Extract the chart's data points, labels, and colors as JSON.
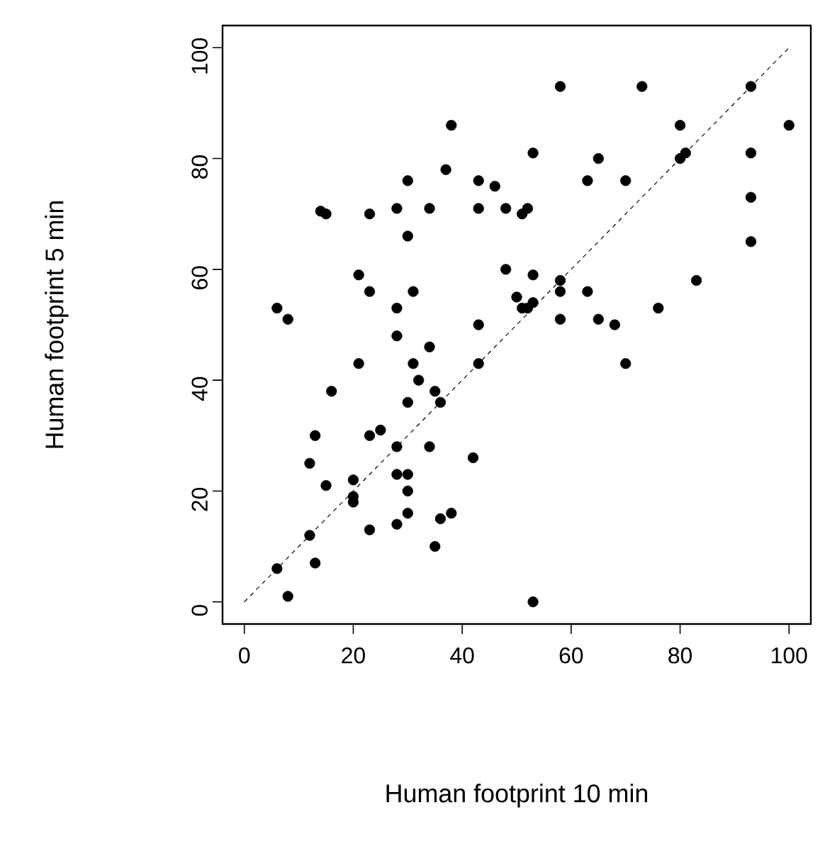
{
  "chart_data": {
    "type": "scatter",
    "xlabel": "Human footprint 10 min",
    "ylabel": "Human footprint 5 min",
    "xlim": [
      -4,
      104
    ],
    "ylim": [
      -4,
      104
    ],
    "xticks": [
      0,
      20,
      40,
      60,
      80,
      100
    ],
    "yticks": [
      0,
      20,
      40,
      60,
      80,
      100
    ],
    "grid": false,
    "series": [
      {
        "color": "#000000",
        "marker": "circle",
        "x": [
          6,
          8,
          6,
          8,
          12,
          12,
          13,
          13,
          15,
          14,
          15,
          16,
          20,
          20,
          20,
          21,
          21,
          23,
          23,
          23,
          23,
          25,
          28,
          28,
          28,
          28,
          28,
          28,
          30,
          30,
          30,
          30,
          30,
          30,
          31,
          31,
          32,
          34,
          34,
          34,
          35,
          36,
          35,
          36,
          37,
          38,
          38,
          42,
          43,
          43,
          43,
          43,
          46,
          48,
          48,
          50,
          51,
          51,
          52,
          52,
          53,
          53,
          53,
          53,
          58,
          58,
          58,
          58,
          63,
          63,
          65,
          65,
          68,
          70,
          70,
          73,
          76,
          80,
          80,
          81,
          83,
          93,
          93,
          93,
          93,
          100
        ],
        "values": [
          53,
          51,
          6,
          1,
          12,
          25,
          30,
          7,
          21,
          70.5,
          70,
          38,
          22,
          19,
          18,
          43,
          59,
          56,
          30,
          13,
          70,
          31,
          14,
          23,
          28,
          53,
          48,
          71,
          76,
          66,
          36,
          23,
          20,
          16,
          43,
          56,
          40,
          71,
          46,
          28,
          38,
          36,
          10,
          15,
          78,
          86,
          16,
          26,
          76,
          71,
          50,
          43,
          75,
          71,
          60,
          55,
          53,
          70,
          71,
          53,
          59,
          81,
          0,
          54,
          93,
          58,
          56,
          51,
          76,
          56,
          80,
          51,
          50,
          76,
          43,
          93,
          53,
          86,
          80,
          81,
          58,
          93,
          81,
          73,
          65,
          86
        ]
      },
      {
        "type": "line",
        "color": "#000000",
        "line_style": "dashed",
        "marker": "none",
        "x": [
          0,
          100
        ],
        "values": [
          0,
          100
        ]
      }
    ]
  }
}
